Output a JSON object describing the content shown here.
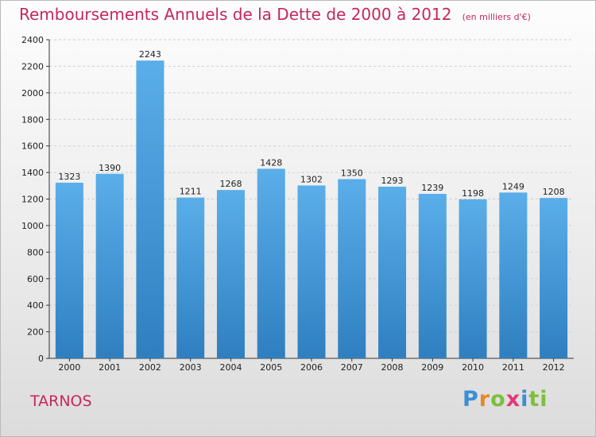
{
  "chart_data": {
    "type": "bar",
    "title": "Remboursements Annuels de la Dette de 2000 à 2012",
    "unit_note": "(en milliers d'€)",
    "categories": [
      "2000",
      "2001",
      "2002",
      "2003",
      "2004",
      "2005",
      "2006",
      "2007",
      "2008",
      "2009",
      "2010",
      "2011",
      "2012"
    ],
    "values": [
      1323,
      1390,
      2243,
      1211,
      1268,
      1428,
      1302,
      1350,
      1293,
      1239,
      1198,
      1249,
      1208
    ],
    "ylim": [
      0,
      2400
    ],
    "yticks": [
      0,
      200,
      400,
      600,
      800,
      1000,
      1200,
      1400,
      1600,
      1800,
      2000,
      2200,
      2400
    ],
    "grid": true,
    "bar_color_top": "#5aaee9",
    "bar_color_bottom": "#2f7fc0",
    "title_color": "#c5285a"
  },
  "place_label": "TARNOS",
  "logo": {
    "letters": [
      "P",
      "r",
      "o",
      "x",
      "i",
      "ti"
    ],
    "colors": [
      "#3a8fd6",
      "#e9872b",
      "#7cbf3d",
      "#e23a7a",
      "#3a8fd6",
      "#7cbf3d"
    ]
  }
}
